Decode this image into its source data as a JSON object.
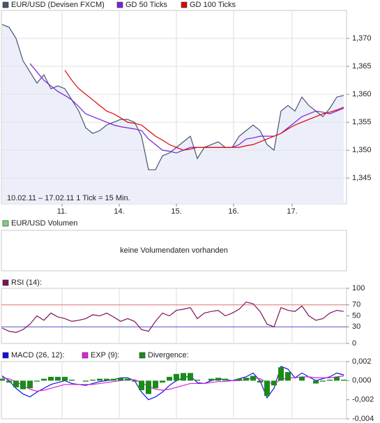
{
  "chart_data": [
    {
      "type": "line",
      "x": [
        0,
        1,
        2,
        3,
        4,
        5,
        6,
        7,
        8,
        9,
        10,
        11,
        12,
        13,
        14,
        15,
        16,
        17,
        18,
        19,
        20,
        21,
        22,
        23,
        24,
        25,
        26,
        27,
        28,
        29,
        30,
        31,
        32,
        33,
        34,
        35,
        36,
        37,
        38,
        39,
        40,
        41,
        42,
        43,
        44,
        45,
        46,
        47,
        48,
        49
      ],
      "xlim": [
        -0.1,
        49.4
      ],
      "xticks": [
        {
          "value": 8.6,
          "label": "11."
        },
        {
          "value": 16.8,
          "label": "14."
        },
        {
          "value": 25,
          "label": "15."
        },
        {
          "value": 33.2,
          "label": "16."
        },
        {
          "value": 41.6,
          "label": "17."
        }
      ],
      "ylim": [
        1.3404,
        1.375
      ],
      "yticks": [
        {
          "value": 1.345,
          "label": "1,345"
        },
        {
          "value": 1.35,
          "label": "1,350"
        },
        {
          "value": 1.355,
          "label": "1,355"
        },
        {
          "value": 1.36,
          "label": "1,360"
        },
        {
          "value": 1.365,
          "label": "1,365"
        },
        {
          "value": 1.37,
          "label": "1,370"
        }
      ],
      "grid": true,
      "note": "10.02.11 – 17.02.11   1 Tick = 15 Min.",
      "series": [
        {
          "name": "EUR/USD (Devisen FXCM)",
          "color": "#46566e",
          "fill": "#eceff9",
          "values": [
            1.3725,
            1.372,
            1.37,
            1.366,
            1.364,
            1.362,
            1.3635,
            1.361,
            1.3615,
            1.361,
            1.359,
            1.357,
            1.354,
            1.353,
            1.3535,
            1.3545,
            1.355,
            1.3555,
            1.3555,
            1.355,
            1.3525,
            1.3465,
            1.3465,
            1.349,
            1.3495,
            1.3505,
            1.3515,
            1.3525,
            1.3485,
            1.3505,
            1.351,
            1.3515,
            1.3505,
            1.3505,
            1.3525,
            1.3535,
            1.3545,
            1.3535,
            1.351,
            1.35,
            1.357,
            1.358,
            1.357,
            1.3595,
            1.358,
            1.357,
            1.356,
            1.3575,
            1.3595,
            1.3598
          ]
        },
        {
          "name": "GD 50 Ticks",
          "color": "#7a22d8",
          "values": [
            null,
            null,
            null,
            null,
            1.3655,
            1.364,
            1.3625,
            1.3615,
            1.3605,
            1.3598,
            1.359,
            1.3578,
            1.3565,
            1.356,
            1.3555,
            1.355,
            1.3545,
            1.3542,
            1.354,
            1.3538,
            1.3535,
            1.352,
            1.351,
            1.35,
            1.3498,
            1.3495,
            1.35,
            1.3505,
            1.3505,
            1.3505,
            1.3505,
            1.3505,
            1.3505,
            1.3505,
            1.351,
            1.352,
            1.3522,
            1.3525,
            1.3525,
            1.3525,
            1.353,
            1.354,
            1.355,
            1.356,
            1.3565,
            1.357,
            1.3568,
            1.3565,
            1.357,
            1.3575
          ]
        },
        {
          "name": "GD 100 Ticks",
          "color": "#e00000",
          "values": [
            null,
            null,
            null,
            null,
            null,
            null,
            null,
            null,
            null,
            1.3643,
            1.3625,
            1.361,
            1.36,
            1.359,
            1.358,
            1.357,
            1.3565,
            1.3558,
            1.355,
            1.3548,
            1.3545,
            1.3535,
            1.3525,
            1.3518,
            1.351,
            1.3505,
            1.35,
            1.3502,
            1.3505,
            1.3505,
            1.3505,
            1.3505,
            1.3505,
            1.3505,
            1.3505,
            1.3508,
            1.351,
            1.3515,
            1.352,
            1.3525,
            1.353,
            1.3538,
            1.3545,
            1.355,
            1.3555,
            1.356,
            1.3565,
            1.3568,
            1.3572,
            1.3577
          ]
        }
      ]
    },
    {
      "type": "empty",
      "series": [
        {
          "name": "EUR/USD Volumen",
          "color": "#7fd07f"
        }
      ],
      "message": "keine Volumendaten vorhanden"
    },
    {
      "type": "line",
      "x": [
        0,
        1,
        2,
        3,
        4,
        5,
        6,
        7,
        8,
        9,
        10,
        11,
        12,
        13,
        14,
        15,
        16,
        17,
        18,
        19,
        20,
        21,
        22,
        23,
        24,
        25,
        26,
        27,
        28,
        29,
        30,
        31,
        32,
        33,
        34,
        35,
        36,
        37,
        38,
        39,
        40,
        41,
        42,
        43,
        44,
        45,
        46,
        47,
        48,
        49
      ],
      "xlim": [
        -0.1,
        49.4
      ],
      "xticks": [
        8.6,
        16.8,
        25,
        33.2,
        41.6
      ],
      "ylim": [
        0,
        100
      ],
      "yticks": [
        0,
        30,
        50,
        70,
        100
      ],
      "hlines": [
        {
          "value": 70,
          "color": "#e07070"
        },
        {
          "value": 30,
          "color": "#5050c8"
        }
      ],
      "series": [
        {
          "name": "RSI (14):",
          "color": "#80105a",
          "values": [
            28,
            22,
            20,
            25,
            35,
            50,
            42,
            55,
            48,
            45,
            40,
            42,
            45,
            52,
            50,
            55,
            48,
            40,
            45,
            40,
            25,
            22,
            40,
            55,
            50,
            60,
            62,
            65,
            45,
            55,
            58,
            60,
            50,
            55,
            62,
            75,
            72,
            58,
            35,
            30,
            65,
            60,
            58,
            68,
            50,
            42,
            45,
            55,
            60,
            58
          ]
        }
      ]
    },
    {
      "type": "line",
      "x": [
        0,
        1,
        2,
        3,
        4,
        5,
        6,
        7,
        8,
        9,
        10,
        11,
        12,
        13,
        14,
        15,
        16,
        17,
        18,
        19,
        20,
        21,
        22,
        23,
        24,
        25,
        26,
        27,
        28,
        29,
        30,
        31,
        32,
        33,
        34,
        35,
        36,
        37,
        38,
        39,
        40,
        41,
        42,
        43,
        44,
        45,
        46,
        47,
        48,
        49
      ],
      "xlim": [
        -0.1,
        49.4
      ],
      "xticks": [
        8.6,
        16.8,
        25,
        33.2,
        41.6
      ],
      "ylim": [
        -0.004,
        0.002
      ],
      "yticks": [
        {
          "value": -0.004,
          "label": "-0,004"
        },
        {
          "value": -0.002,
          "label": "-0,002"
        },
        {
          "value": 0,
          "label": "0,000"
        },
        {
          "value": 0.002,
          "label": "0,002"
        }
      ],
      "series": [
        {
          "name": "MACD (26, 12):",
          "color": "#1010e0",
          "values": [
            0.0005,
            0.0,
            -0.0008,
            -0.0014,
            -0.0017,
            -0.0012,
            -0.0008,
            -0.0004,
            -0.0002,
            0.0,
            -0.0003,
            -0.0004,
            -0.0005,
            -0.0003,
            -0.0001,
            0.0,
            0.0001,
            0.0003,
            0.0003,
            0.0,
            -0.0012,
            -0.002,
            -0.0017,
            -0.0012,
            -0.0005,
            0.0,
            0.0003,
            0.0005,
            -0.0002,
            -0.0003,
            0.0,
            0.0002,
            0.0001,
            0.0,
            0.0002,
            0.0004,
            0.0008,
            0.0,
            -0.0018,
            -0.0008,
            0.0015,
            0.0012,
            0.0003,
            0.0008,
            0.0004,
            0.0,
            0.0002,
            0.0004,
            0.0008,
            0.0006
          ]
        },
        {
          "name": "EXP (9):",
          "color": "#e020e0",
          "values": [
            0.0003,
            0.0002,
            -0.0001,
            -0.0005,
            -0.0009,
            -0.0011,
            -0.001,
            -0.0008,
            -0.0006,
            -0.0004,
            -0.0004,
            -0.0004,
            -0.0004,
            -0.0004,
            -0.0003,
            -0.0002,
            -0.0001,
            0.0,
            0.0001,
            0.0001,
            -0.0002,
            -0.0006,
            -0.0009,
            -0.001,
            -0.0009,
            -0.0007,
            -0.0005,
            -0.0003,
            -0.0003,
            -0.0003,
            -0.0002,
            -0.0001,
            -0.0001,
            0.0,
            0.0,
            0.0001,
            0.0003,
            0.0002,
            -0.0002,
            -0.0003,
            0.0001,
            0.0003,
            0.0003,
            0.0004,
            0.0004,
            0.0003,
            0.0003,
            0.0003,
            0.0004,
            0.0005
          ]
        },
        {
          "name": "Divergence:",
          "color": "#1a8a1a",
          "kind": "bar",
          "values": [
            0.0002,
            -0.0002,
            -0.0007,
            -0.0009,
            -0.0008,
            -0.0001,
            0.0002,
            0.0004,
            0.0004,
            0.0004,
            0.0001,
            0.0,
            -0.0001,
            0.0001,
            0.0002,
            0.0002,
            0.0002,
            0.0003,
            0.0002,
            -0.0001,
            -0.001,
            -0.0014,
            -0.0008,
            -0.0002,
            0.0004,
            0.0007,
            0.0008,
            0.0008,
            0.0001,
            0.0,
            0.0002,
            0.0003,
            0.0002,
            0.0,
            0.0002,
            0.0003,
            0.0005,
            -0.0002,
            -0.0016,
            -0.0005,
            0.0014,
            0.0009,
            0.0,
            0.0004,
            0.0,
            -0.0003,
            -0.0001,
            0.0001,
            0.0004,
            0.0001
          ]
        }
      ]
    }
  ]
}
